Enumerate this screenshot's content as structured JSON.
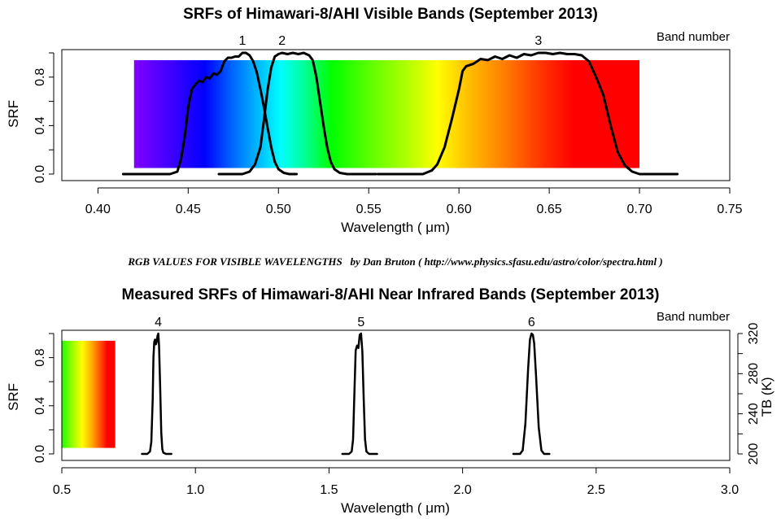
{
  "chart_data": [
    {
      "type": "line",
      "title": "SRFs of Himawari-8/AHI Visible Bands (September 2013)",
      "xlabel": "Wavelength ( μm)",
      "ylabel": "SRF",
      "xlim": [
        0.38,
        0.75
      ],
      "ylim": [
        0.0,
        1.0
      ],
      "x_ticks": [
        0.4,
        0.45,
        0.5,
        0.55,
        0.6,
        0.65,
        0.7,
        0.75
      ],
      "x_tick_labels": [
        "0.40",
        "0.45",
        "0.50",
        "0.55",
        "0.60",
        "0.65",
        "0.70",
        "0.75"
      ],
      "y_ticks": [
        0.0,
        0.4,
        0.8
      ],
      "y_tick_labels": [
        "0.0",
        "0.4",
        "0.8"
      ],
      "corner_label": "Band number",
      "spectrum_band": {
        "x_start": 0.42,
        "x_end": 0.7,
        "y_bottom": 0.05,
        "y_top": 0.94
      },
      "series": [
        {
          "name": "1",
          "x": [
            0.414,
            0.43,
            0.44,
            0.444,
            0.446,
            0.448,
            0.45,
            0.452,
            0.454,
            0.456,
            0.458,
            0.46,
            0.462,
            0.464,
            0.466,
            0.468,
            0.47,
            0.472,
            0.474,
            0.476,
            0.478,
            0.48,
            0.482,
            0.484,
            0.486,
            0.488,
            0.49,
            0.492,
            0.494,
            0.496,
            0.498,
            0.5,
            0.503,
            0.506,
            0.51
          ],
          "y": [
            0.0,
            0.0,
            0.0,
            0.02,
            0.12,
            0.3,
            0.55,
            0.7,
            0.74,
            0.77,
            0.76,
            0.8,
            0.79,
            0.83,
            0.82,
            0.85,
            0.93,
            0.96,
            0.96,
            0.97,
            0.97,
            1.0,
            1.0,
            0.98,
            0.93,
            0.84,
            0.7,
            0.55,
            0.38,
            0.22,
            0.1,
            0.04,
            0.01,
            0.0,
            0.0
          ]
        },
        {
          "name": "2",
          "x": [
            0.467,
            0.48,
            0.484,
            0.487,
            0.49,
            0.492,
            0.494,
            0.496,
            0.498,
            0.5,
            0.502,
            0.505,
            0.508,
            0.511,
            0.514,
            0.517,
            0.519,
            0.521,
            0.523,
            0.525,
            0.527,
            0.529,
            0.531,
            0.534,
            0.538,
            0.545,
            0.554
          ],
          "y": [
            0.0,
            0.0,
            0.02,
            0.08,
            0.22,
            0.45,
            0.7,
            0.88,
            0.97,
            0.99,
            1.0,
            0.99,
            1.0,
            0.99,
            1.0,
            0.98,
            0.94,
            0.8,
            0.6,
            0.4,
            0.22,
            0.1,
            0.04,
            0.01,
            0.0,
            0.0,
            0.0
          ]
        },
        {
          "name": "3",
          "x": [
            0.555,
            0.57,
            0.58,
            0.585,
            0.588,
            0.592,
            0.596,
            0.6,
            0.602,
            0.604,
            0.608,
            0.612,
            0.616,
            0.62,
            0.624,
            0.628,
            0.632,
            0.636,
            0.64,
            0.644,
            0.648,
            0.652,
            0.656,
            0.66,
            0.664,
            0.668,
            0.672,
            0.676,
            0.68,
            0.684,
            0.688,
            0.692,
            0.696,
            0.7,
            0.71,
            0.721
          ],
          "y": [
            0.0,
            0.0,
            0.0,
            0.03,
            0.08,
            0.22,
            0.45,
            0.7,
            0.85,
            0.89,
            0.91,
            0.95,
            0.94,
            0.97,
            0.95,
            0.98,
            0.96,
            0.99,
            0.98,
            1.0,
            1.0,
            0.99,
            1.0,
            0.99,
            0.99,
            0.98,
            0.93,
            0.8,
            0.65,
            0.4,
            0.18,
            0.07,
            0.02,
            0.0,
            0.0,
            0.0
          ]
        }
      ]
    },
    {
      "type": "line",
      "title": "Measured SRFs of Himawari-8/AHI Near Infrared Bands (September 2013)",
      "xlabel": "Wavelength ( μm)",
      "ylabel": "SRF",
      "y2label": "TB (K)",
      "xlim": [
        0.5,
        3.0
      ],
      "ylim": [
        0.0,
        1.0
      ],
      "y2lim": [
        200,
        320
      ],
      "x_ticks": [
        0.5,
        1.0,
        1.5,
        2.0,
        2.5,
        3.0
      ],
      "x_tick_labels": [
        "0.5",
        "1.0",
        "1.5",
        "2.0",
        "2.5",
        "3.0"
      ],
      "y_ticks": [
        0.0,
        0.4,
        0.8
      ],
      "y_tick_labels": [
        "0.0",
        "0.4",
        "0.8"
      ],
      "y2_ticks": [
        200,
        240,
        280,
        320
      ],
      "y2_tick_labels": [
        "200",
        "240",
        "280",
        "320"
      ],
      "corner_label": "Band number",
      "spectrum_band": {
        "x_start": 0.5,
        "x_end": 0.7,
        "y_bottom": 0.05,
        "y_top": 0.94
      },
      "series": [
        {
          "name": "4",
          "x": [
            0.8,
            0.82,
            0.83,
            0.835,
            0.84,
            0.843,
            0.846,
            0.849,
            0.852,
            0.855,
            0.858,
            0.861,
            0.864,
            0.868,
            0.872,
            0.876,
            0.88,
            0.89,
            0.91
          ],
          "y": [
            0.0,
            0.0,
            0.02,
            0.1,
            0.45,
            0.8,
            0.93,
            0.95,
            0.91,
            0.93,
            0.98,
            1.0,
            0.9,
            0.55,
            0.18,
            0.04,
            0.01,
            0.0,
            0.0
          ]
        },
        {
          "name": "5",
          "x": [
            1.55,
            1.575,
            1.585,
            1.59,
            1.595,
            1.6,
            1.605,
            1.61,
            1.615,
            1.62,
            1.625,
            1.63,
            1.635,
            1.64,
            1.65,
            1.68
          ],
          "y": [
            0.0,
            0.0,
            0.02,
            0.12,
            0.5,
            0.86,
            0.9,
            0.88,
            0.99,
            1.0,
            0.85,
            0.45,
            0.12,
            0.02,
            0.0,
            0.0
          ]
        },
        {
          "name": "6",
          "x": [
            2.19,
            2.215,
            2.225,
            2.235,
            2.245,
            2.252,
            2.258,
            2.263,
            2.268,
            2.275,
            2.285,
            2.295,
            2.305,
            2.325
          ],
          "y": [
            0.0,
            0.0,
            0.03,
            0.25,
            0.7,
            0.95,
            1.0,
            0.99,
            0.92,
            0.65,
            0.22,
            0.03,
            0.0,
            0.0
          ]
        }
      ]
    }
  ],
  "credit": "RGB VALUES FOR VISIBLE WAVELENGTHS   by Dan Bruton ( http://www.physics.sfasu.edu/astro/color/spectra.html )"
}
